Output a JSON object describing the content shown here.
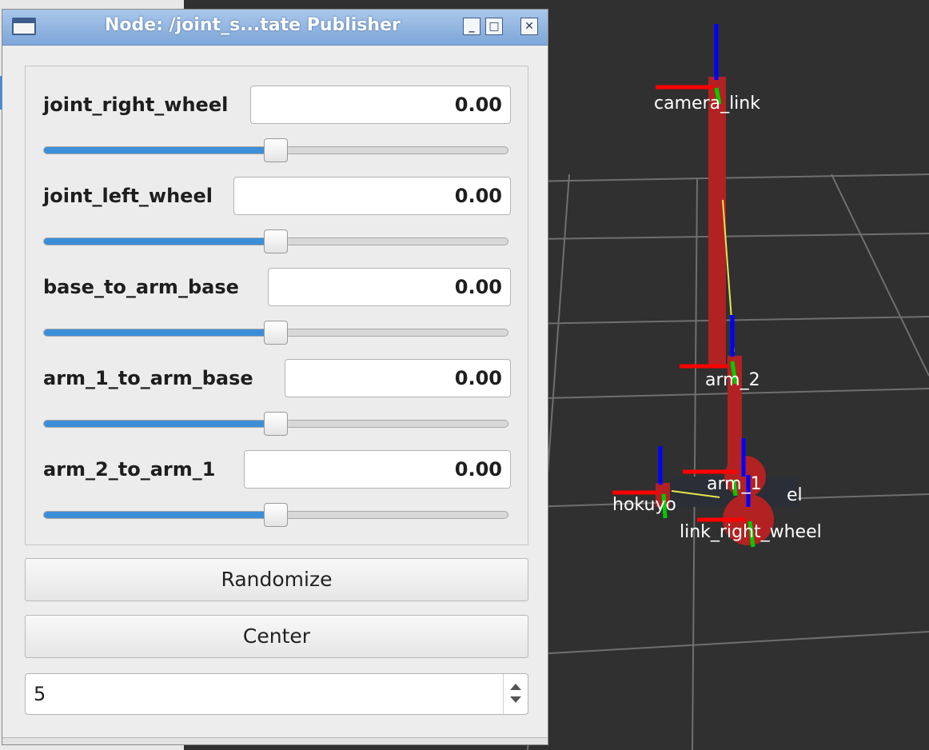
{
  "window": {
    "title": "Node: /joint_s...tate Publisher",
    "minimize_glyph": "_",
    "maximize_glyph": "□",
    "close_glyph": "✕"
  },
  "joints": [
    {
      "name": "joint_right_wheel",
      "value": "0.00",
      "slider_fraction": 0.5
    },
    {
      "name": "joint_left_wheel",
      "value": "0.00",
      "slider_fraction": 0.5
    },
    {
      "name": "base_to_arm_base",
      "value": "0.00",
      "slider_fraction": 0.5
    },
    {
      "name": "arm_1_to_arm_base",
      "value": "0.00",
      "slider_fraction": 0.5
    },
    {
      "name": "arm_2_to_arm_1",
      "value": "0.00",
      "slider_fraction": 0.5
    }
  ],
  "buttons": {
    "randomize": "Randomize",
    "center": "Center"
  },
  "spinbox": {
    "value": "5"
  },
  "scene": {
    "labels": {
      "camera": "camera_link",
      "arm2": "arm_2",
      "arm1": "arm_1",
      "hokuyo": "hokuyo",
      "right_wheel": "link_right_wheel",
      "el": "el"
    }
  },
  "colors": {
    "viewport_bg": "#303030",
    "grid": "#6f6f6f",
    "robot_red": "#b22222",
    "axis_x": "#ff0000",
    "axis_y": "#00cc00",
    "axis_z": "#0000ff",
    "slider_fill": "#3b8fd8",
    "titlebar": "#8fb4e3"
  }
}
